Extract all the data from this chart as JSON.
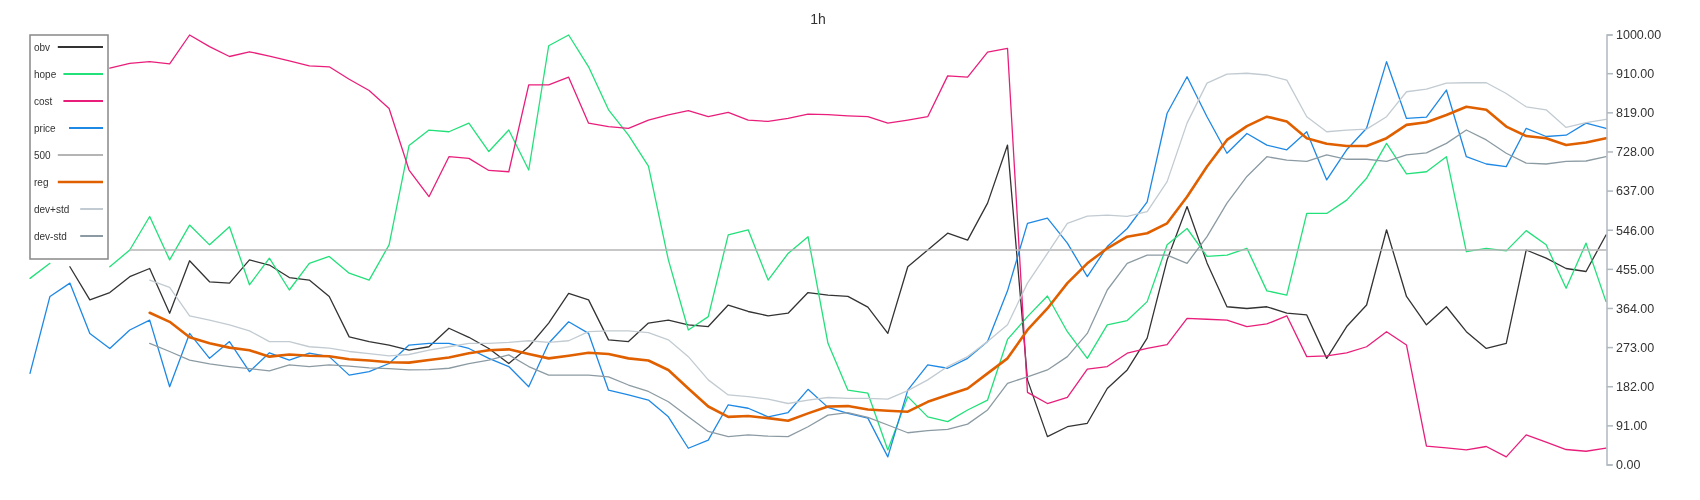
{
  "chart_data": {
    "type": "line",
    "title": "1h",
    "categories": [
      null,
      null,
      null,
      null,
      null,
      null,
      null,
      null,
      null,
      null,
      null,
      null,
      null,
      null,
      null,
      null,
      null,
      null,
      null,
      null,
      null,
      null,
      null,
      null,
      null,
      null,
      null,
      null,
      null,
      null,
      null,
      null,
      null,
      null,
      null,
      null,
      null,
      null,
      null,
      null,
      null,
      null,
      null,
      null,
      null,
      null,
      null,
      null,
      null,
      null,
      null,
      null,
      null,
      null,
      null,
      null,
      null,
      null,
      null,
      null,
      null,
      null,
      null,
      null,
      null,
      null,
      null,
      null,
      null,
      null,
      null,
      null,
      null,
      null,
      null,
      null,
      null,
      null,
      null,
      null
    ],
    "ylim": [
      0,
      1000
    ],
    "yticks": [
      {
        "value": 0,
        "label": "0.00"
      },
      {
        "value": 91,
        "label": "91.00"
      },
      {
        "value": 182,
        "label": "182.00"
      },
      {
        "value": 273,
        "label": "273.00"
      },
      {
        "value": 364,
        "label": "364.00"
      },
      {
        "value": 455,
        "label": "455.00"
      },
      {
        "value": 546,
        "label": "546.00"
      },
      {
        "value": 637,
        "label": "637.00"
      },
      {
        "value": 728,
        "label": "728.00"
      },
      {
        "value": 819,
        "label": "819.00"
      },
      {
        "value": 910,
        "label": "910.00"
      },
      {
        "value": 1000,
        "label": "1000.00"
      }
    ],
    "tick_labels": "y",
    "grid": false,
    "legend": "top left",
    "marker": "none",
    "line_style": "solid",
    "series": [
      {
        "name": "obv",
        "color": "#333333",
        "values": [
          null,
          null,
          461,
          384,
          401,
          438,
          457,
          353,
          475,
          426,
          423,
          477,
          465,
          436,
          430,
          392,
          298,
          287,
          279,
          267,
          275,
          318,
          297,
          271,
          236,
          275,
          330,
          399,
          384,
          291,
          287,
          330,
          337,
          326,
          322,
          372,
          357,
          347,
          353,
          401,
          395,
          392,
          367,
          306,
          461,
          500,
          539,
          523,
          609,
          744,
          198,
          66,
          89,
          97,
          178,
          221,
          295,
          477,
          601,
          470,
          368,
          364,
          368,
          353,
          349,
          248,
          322,
          372,
          547,
          392,
          326,
          368,
          310,
          271,
          283,
          500,
          481,
          457,
          450,
          535
        ]
      },
      {
        "name": "hope",
        "color": "#22e07a",
        "values": [
          434,
          469,
          null,
          null,
          461,
          500,
          578,
          477,
          558,
          512,
          554,
          419,
          481,
          407,
          469,
          485,
          446,
          430,
          512,
          743,
          779,
          775,
          795,
          729,
          779,
          686,
          975,
          1000,
          926,
          826,
          767,
          695,
          477,
          314,
          345,
          535,
          547,
          430,
          492,
          531,
          283,
          174,
          167,
          35,
          159,
          112,
          101,
          128,
          151,
          292,
          345,
          393,
          310,
          248,
          326,
          336,
          380,
          512,
          550,
          485,
          488,
          504,
          405,
          395,
          585,
          585,
          616,
          667,
          748,
          677,
          682,
          717,
          496,
          504,
          498,
          545,
          512,
          411,
          516,
          380
        ]
      },
      {
        "name": "cost",
        "color": "#e91e7a",
        "values": [
          null,
          null,
          null,
          null,
          923,
          934,
          938,
          933,
          1000,
          973,
          950,
          961,
          951,
          940,
          928,
          926,
          897,
          871,
          829,
          686,
          624,
          717,
          713,
          685,
          682,
          884,
          884,
          902,
          795,
          787,
          783,
          802,
          814,
          824,
          810,
          820,
          802,
          799,
          806,
          816,
          815,
          812,
          810,
          795,
          802,
          810,
          905,
          902,
          960,
          969,
          169,
          143,
          157,
          223,
          229,
          260,
          271,
          280,
          341,
          339,
          337,
          322,
          328,
          347,
          252,
          254,
          261,
          275,
          310,
          279,
          44,
          40,
          35,
          43,
          19,
          70,
          53,
          36,
          32,
          39
        ]
      },
      {
        "name": "price",
        "color": "#1e88e5",
        "values": [
          213,
          392,
          423,
          306,
          271,
          314,
          337,
          182,
          306,
          248,
          287,
          217,
          261,
          244,
          260,
          252,
          209,
          217,
          236,
          279,
          283,
          283,
          271,
          248,
          229,
          182,
          283,
          333,
          306,
          174,
          163,
          151,
          112,
          39,
          58,
          140,
          132,
          112,
          122,
          176,
          134,
          120,
          109,
          19,
          174,
          233,
          225,
          248,
          287,
          405,
          562,
          574,
          516,
          438,
          508,
          550,
          612,
          818,
          903,
          810,
          725,
          771,
          744,
          733,
          775,
          663,
          733,
          783,
          938,
          806,
          809,
          872,
          717,
          700,
          694,
          783,
          764,
          767,
          795,
          783
        ]
      },
      {
        "name": "500",
        "color": "#b5b5b5",
        "values": [
          null,
          null,
          null,
          null,
          null,
          500,
          500,
          500,
          500,
          500,
          500,
          500,
          500,
          500,
          500,
          500,
          500,
          500,
          500,
          500,
          500,
          500,
          500,
          500,
          500,
          500,
          500,
          500,
          500,
          500,
          500,
          500,
          500,
          500,
          500,
          500,
          500,
          500,
          500,
          500,
          500,
          500,
          500,
          500,
          500,
          500,
          500,
          500,
          500,
          500,
          500,
          500,
          500,
          500,
          500,
          500,
          500,
          500,
          500,
          500,
          500,
          500,
          500,
          500,
          500,
          500,
          500,
          500,
          500,
          500,
          500,
          500,
          500,
          500,
          500,
          500,
          500,
          500,
          500,
          500
        ]
      },
      {
        "name": "reg",
        "color": "#e06000",
        "values": [
          null,
          null,
          null,
          null,
          null,
          null,
          354,
          333,
          297,
          283,
          273,
          267,
          252,
          257,
          254,
          253,
          246,
          243,
          239,
          238,
          244,
          250,
          260,
          267,
          269,
          258,
          248,
          254,
          261,
          258,
          248,
          243,
          221,
          178,
          136,
          112,
          114,
          109,
          103,
          120,
          136,
          137,
          129,
          126,
          124,
          147,
          163,
          178,
          213,
          248,
          314,
          364,
          423,
          469,
          504,
          531,
          539,
          562,
          624,
          694,
          756,
          788,
          810,
          799,
          760,
          747,
          742,
          742,
          760,
          791,
          797,
          814,
          833,
          826,
          787,
          765,
          760,
          744,
          750,
          760
        ]
      },
      {
        "name": "dev+std",
        "color": "#c2cbd1",
        "values": [
          null,
          null,
          null,
          null,
          null,
          null,
          430,
          413,
          347,
          337,
          326,
          312,
          287,
          287,
          275,
          272,
          264,
          259,
          254,
          257,
          267,
          275,
          283,
          283,
          285,
          289,
          285,
          289,
          310,
          312,
          312,
          308,
          291,
          252,
          198,
          163,
          159,
          153,
          143,
          151,
          157,
          155,
          155,
          153,
          173,
          198,
          229,
          252,
          287,
          326,
          423,
          492,
          562,
          579,
          581,
          578,
          589,
          659,
          795,
          888,
          909,
          911,
          907,
          895,
          810,
          775,
          779,
          781,
          810,
          868,
          874,
          888,
          889,
          889,
          864,
          833,
          826,
          785,
          796,
          804
        ]
      },
      {
        "name": "dev-std",
        "color": "#8c9ba3",
        "values": [
          null,
          null,
          null,
          null,
          null,
          null,
          283,
          264,
          244,
          235,
          229,
          224,
          219,
          233,
          229,
          233,
          230,
          226,
          224,
          221,
          222,
          225,
          236,
          244,
          256,
          229,
          209,
          209,
          209,
          205,
          186,
          171,
          147,
          112,
          78,
          66,
          70,
          67,
          66,
          89,
          116,
          122,
          111,
          93,
          75,
          80,
          83,
          95,
          128,
          190,
          205,
          221,
          252,
          306,
          407,
          469,
          488,
          488,
          469,
          531,
          609,
          671,
          717,
          709,
          706,
          721,
          711,
          711,
          706,
          721,
          726,
          748,
          779,
          756,
          725,
          702,
          700,
          706,
          707,
          717
        ]
      }
    ]
  }
}
